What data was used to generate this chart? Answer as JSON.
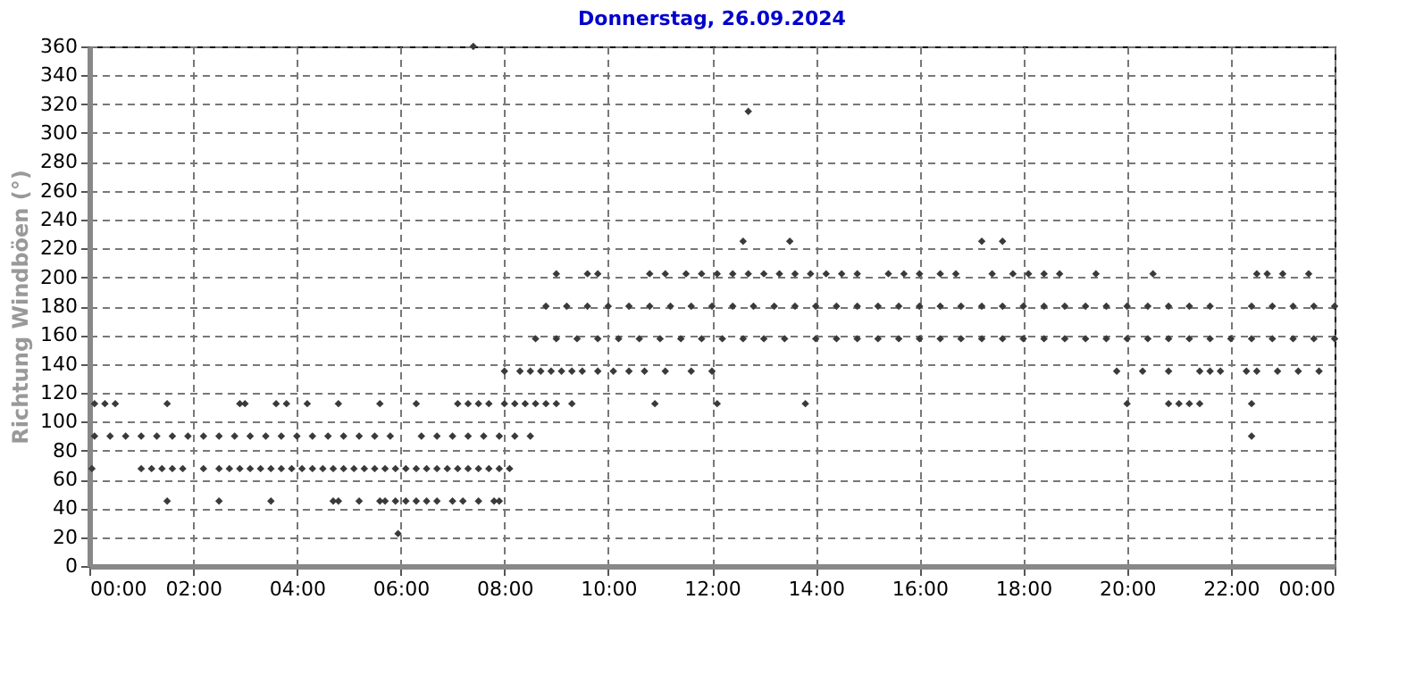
{
  "chart_data": {
    "type": "scatter",
    "title": "Donnerstag, 26.09.2024",
    "ylabel": "Richtung Windböen  (°)",
    "marker": "diamond",
    "grid": true,
    "legend": false,
    "xlim": [
      0,
      24
    ],
    "ylim": [
      0,
      360
    ],
    "xticks": [
      {
        "value": 0,
        "label": "00:00"
      },
      {
        "value": 2,
        "label": "02:00"
      },
      {
        "value": 4,
        "label": "04:00"
      },
      {
        "value": 6,
        "label": "06:00"
      },
      {
        "value": 8,
        "label": "08:00"
      },
      {
        "value": 10,
        "label": "10:00"
      },
      {
        "value": 12,
        "label": "12:00"
      },
      {
        "value": 14,
        "label": "14:00"
      },
      {
        "value": 16,
        "label": "16:00"
      },
      {
        "value": 18,
        "label": "18:00"
      },
      {
        "value": 20,
        "label": "20:00"
      },
      {
        "value": 22,
        "label": "22:00"
      },
      {
        "value": 24,
        "label": "00:00"
      }
    ],
    "yticks": [
      0,
      20,
      40,
      60,
      80,
      100,
      120,
      140,
      160,
      180,
      200,
      220,
      240,
      260,
      280,
      300,
      320,
      340,
      360
    ],
    "series": [
      {
        "color": "#3a3a3a",
        "x": [
          0.1,
          0.4,
          0.7,
          1.0,
          1.3,
          1.6,
          1.9,
          2.2,
          2.5,
          2.8,
          3.1,
          3.4,
          3.7,
          4.0,
          4.3,
          4.6,
          4.9,
          5.2,
          5.5,
          5.8,
          6.4,
          6.7,
          7.0,
          7.3,
          7.6,
          7.9,
          8.2,
          8.5,
          22.4
        ],
        "values": [
          90,
          90,
          90,
          90,
          90,
          90,
          90,
          90,
          90,
          90,
          90,
          90,
          90,
          90,
          90,
          90,
          90,
          90,
          90,
          90,
          90,
          90,
          90,
          90,
          90,
          90,
          90,
          90,
          90
        ]
      },
      {
        "color": "#3a3a3a",
        "x": [
          0.05,
          1.0,
          1.2,
          1.4,
          1.6,
          1.8,
          2.2,
          2.5,
          2.7,
          2.9,
          3.1,
          3.3,
          3.5,
          3.7,
          3.9,
          4.1,
          4.3,
          4.5,
          4.7,
          4.9,
          5.1,
          5.3,
          5.5,
          5.7,
          5.9,
          6.1,
          6.3,
          6.5,
          6.7,
          6.9,
          7.1,
          7.3,
          7.5,
          7.7,
          7.9,
          8.1
        ],
        "values": [
          67.5,
          67.5,
          67.5,
          67.5,
          67.5,
          67.5,
          67.5,
          67.5,
          67.5,
          67.5,
          67.5,
          67.5,
          67.5,
          67.5,
          67.5,
          67.5,
          67.5,
          67.5,
          67.5,
          67.5,
          67.5,
          67.5,
          67.5,
          67.5,
          67.5,
          67.5,
          67.5,
          67.5,
          67.5,
          67.5,
          67.5,
          67.5,
          67.5,
          67.5,
          67.5,
          67.5
        ]
      },
      {
        "color": "#3a3a3a",
        "x": [
          1.5,
          2.5,
          3.5,
          4.7,
          4.8,
          5.2,
          5.6,
          5.7,
          5.9,
          6.1,
          6.3,
          6.5,
          6.7,
          7.0,
          7.2,
          7.5,
          7.8,
          7.9
        ],
        "values": [
          45,
          45,
          45,
          45,
          45,
          45,
          45,
          45,
          45,
          45,
          45,
          45,
          45,
          45,
          45,
          45,
          45,
          45
        ]
      },
      {
        "color": "#3a3a3a",
        "x": [
          0.1,
          0.3,
          0.5,
          1.5,
          2.9,
          3.0,
          3.6,
          3.8,
          4.2,
          4.8,
          5.6,
          6.3,
          7.1,
          7.3,
          7.5,
          7.7,
          8.0,
          8.2,
          8.4,
          8.6,
          8.8,
          9.0,
          9.3,
          10.9,
          12.1,
          13.8,
          20.0,
          20.8,
          21.0,
          21.2,
          21.4,
          22.4
        ],
        "values": [
          112.5,
          112.5,
          112.5,
          112.5,
          112.5,
          112.5,
          112.5,
          112.5,
          112.5,
          112.5,
          112.5,
          112.5,
          112.5,
          112.5,
          112.5,
          112.5,
          112.5,
          112.5,
          112.5,
          112.5,
          112.5,
          112.5,
          112.5,
          112.5,
          112.5,
          112.5,
          112.5,
          112.5,
          112.5,
          112.5,
          112.5,
          112.5
        ]
      },
      {
        "color": "#3a3a3a",
        "x": [
          8.0,
          8.3,
          8.5,
          8.7,
          8.9,
          9.1,
          9.3,
          9.5,
          9.8,
          10.1,
          10.4,
          10.7,
          11.1,
          11.6,
          12.0,
          19.8,
          20.3,
          20.8,
          21.4,
          21.6,
          21.8,
          22.3,
          22.5,
          22.9,
          23.3,
          23.7
        ],
        "values": [
          135,
          135,
          135,
          135,
          135,
          135,
          135,
          135,
          135,
          135,
          135,
          135,
          135,
          135,
          135,
          135,
          135,
          135,
          135,
          135,
          135,
          135,
          135,
          135,
          135,
          135
        ]
      },
      {
        "color": "#3a3a3a",
        "x": [
          8.6,
          9.0,
          9.4,
          9.8,
          10.2,
          10.6,
          11.0,
          11.4,
          11.8,
          12.2,
          12.6,
          13.0,
          13.4,
          14.0,
          14.4,
          14.8,
          15.2,
          15.6,
          16.0,
          16.4,
          16.8,
          17.2,
          17.6,
          18.0,
          18.4,
          18.8,
          19.2,
          19.6,
          20.0,
          20.4,
          20.8,
          21.2,
          21.6,
          22.0,
          22.4,
          22.8,
          23.2,
          23.6,
          24.0
        ],
        "values": [
          157.5,
          157.5,
          157.5,
          157.5,
          157.5,
          157.5,
          157.5,
          157.5,
          157.5,
          157.5,
          157.5,
          157.5,
          157.5,
          157.5,
          157.5,
          157.5,
          157.5,
          157.5,
          157.5,
          157.5,
          157.5,
          157.5,
          157.5,
          157.5,
          157.5,
          157.5,
          157.5,
          157.5,
          157.5,
          157.5,
          157.5,
          157.5,
          157.5,
          157.5,
          157.5,
          157.5,
          157.5,
          157.5,
          157.5
        ]
      },
      {
        "color": "#3a3a3a",
        "x": [
          8.8,
          9.2,
          9.6,
          10.0,
          10.4,
          10.8,
          11.2,
          11.6,
          12.0,
          12.4,
          12.8,
          13.2,
          13.6,
          14.0,
          14.4,
          14.8,
          15.2,
          15.6,
          16.0,
          16.4,
          16.8,
          17.2,
          17.6,
          18.0,
          18.4,
          18.8,
          19.2,
          19.6,
          20.0,
          20.4,
          20.8,
          21.2,
          21.6,
          22.4,
          22.8,
          23.2,
          23.6,
          24.0
        ],
        "values": [
          180,
          180,
          180,
          180,
          180,
          180,
          180,
          180,
          180,
          180,
          180,
          180,
          180,
          180,
          180,
          180,
          180,
          180,
          180,
          180,
          180,
          180,
          180,
          180,
          180,
          180,
          180,
          180,
          180,
          180,
          180,
          180,
          180,
          180,
          180,
          180,
          180,
          180
        ]
      },
      {
        "color": "#3a3a3a",
        "x": [
          9.0,
          9.6,
          9.8,
          10.8,
          11.1,
          11.5,
          11.8,
          12.1,
          12.4,
          12.7,
          13.0,
          13.3,
          13.6,
          13.9,
          14.2,
          14.5,
          14.8,
          15.4,
          15.7,
          16.0,
          16.4,
          16.7,
          17.4,
          17.8,
          18.1,
          18.4,
          18.7,
          19.4,
          20.5,
          22.5,
          22.7,
          23.0,
          23.5
        ],
        "values": [
          202.5,
          202.5,
          202.5,
          202.5,
          202.5,
          202.5,
          202.5,
          202.5,
          202.5,
          202.5,
          202.5,
          202.5,
          202.5,
          202.5,
          202.5,
          202.5,
          202.5,
          202.5,
          202.5,
          202.5,
          202.5,
          202.5,
          202.5,
          202.5,
          202.5,
          202.5,
          202.5,
          202.5,
          202.5,
          202.5,
          202.5,
          202.5,
          202.5
        ]
      },
      {
        "color": "#3a3a3a",
        "x": [
          5.95,
          7.4,
          12.6,
          12.7,
          13.5,
          17.2,
          17.6
        ],
        "values": [
          22.5,
          360,
          225,
          315,
          225,
          225,
          225
        ]
      }
    ]
  }
}
